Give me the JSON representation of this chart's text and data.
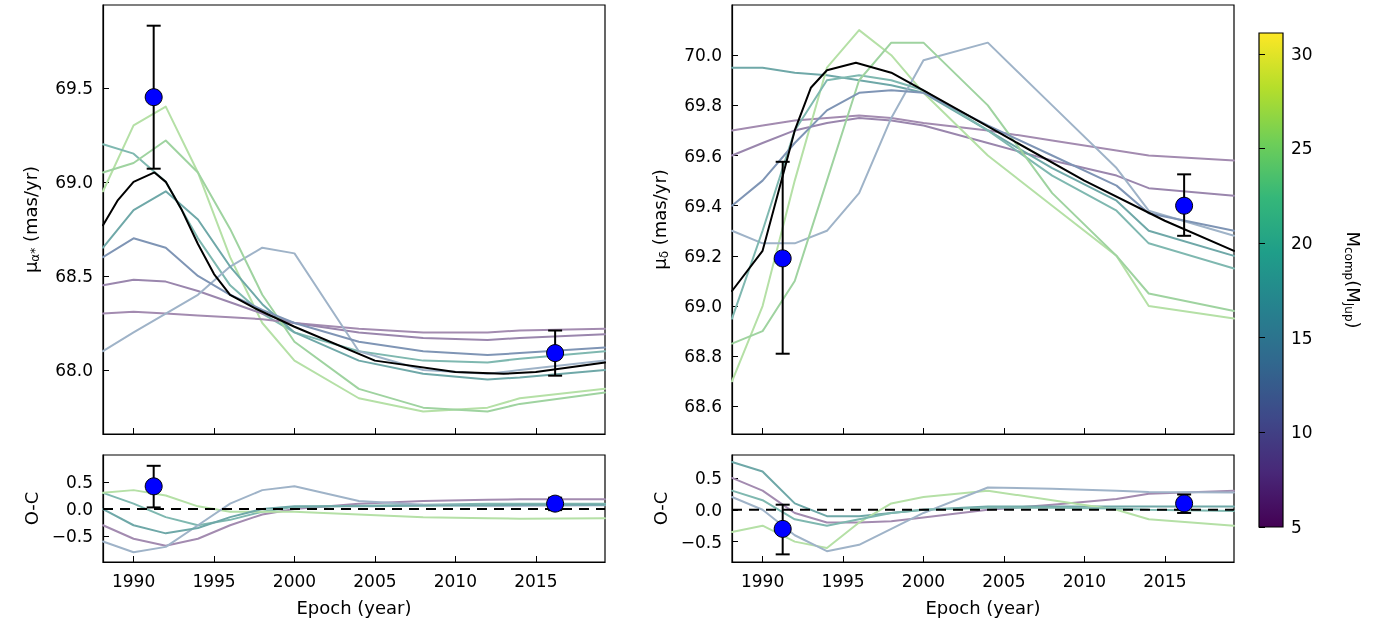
{
  "chart_data": [
    {
      "type": "line",
      "ylabel": "μ$_{α*}$ (mas/yr)",
      "xlim": [
        1988.1,
        2019.3
      ],
      "xticks": [
        1990,
        1995,
        2000,
        2005,
        2010,
        2015
      ],
      "ylim": [
        67.66,
        69.94
      ],
      "yticks": [
        {
          "value": 68,
          "label": "68.0"
        },
        68.5,
        {
          "value": 69,
          "label": "69.0"
        },
        69.5
      ],
      "tick_labels": "y",
      "x": [
        1988.1,
        1990,
        1992,
        1994,
        1996,
        1998,
        2000,
        2004,
        2008,
        2012,
        2014,
        2019.3
      ],
      "series": [
        {
          "color": "#b5e0a6",
          "values": [
            68.95,
            69.3,
            69.4,
            69.05,
            68.6,
            68.25,
            68.05,
            67.85,
            67.78,
            67.8,
            67.85,
            67.9
          ]
        },
        {
          "color": "#7fb8b0",
          "values": [
            69.2,
            69.15,
            69.0,
            68.7,
            68.45,
            68.3,
            68.2,
            68.1,
            68.05,
            68.04,
            68.06,
            68.1
          ]
        },
        {
          "color": "#a38bb0",
          "values": [
            68.3,
            68.31,
            68.3,
            68.29,
            68.28,
            68.27,
            68.25,
            68.22,
            68.2,
            68.2,
            68.21,
            68.22
          ]
        },
        {
          "color": "#9a86ad",
          "values": [
            68.45,
            68.48,
            68.47,
            68.42,
            68.36,
            68.3,
            68.25,
            68.2,
            68.17,
            68.16,
            68.17,
            68.19
          ]
        },
        {
          "color": "#9fb3c8",
          "values": [
            68.1,
            68.2,
            68.3,
            68.4,
            68.55,
            68.65,
            68.62,
            68.1,
            68.0,
            67.98,
            68.0,
            68.05
          ]
        },
        {
          "color": "#6fa8a8",
          "values": [
            68.65,
            68.85,
            68.95,
            68.8,
            68.55,
            68.35,
            68.2,
            68.05,
            67.98,
            67.95,
            67.96,
            68.0
          ]
        },
        {
          "color": "#9fd3a0",
          "values": [
            69.05,
            69.1,
            69.22,
            69.05,
            68.75,
            68.4,
            68.15,
            67.9,
            67.8,
            67.78,
            67.82,
            67.88
          ]
        },
        {
          "color": "#7f95b5",
          "values": [
            68.6,
            68.7,
            68.65,
            68.5,
            68.4,
            68.32,
            68.25,
            68.15,
            68.1,
            68.08,
            68.09,
            68.12
          ]
        },
        {
          "color": "#000000",
          "x": [
            1988.1,
            1989,
            1990,
            1991.3,
            1992,
            1993,
            1994,
            1995,
            1996,
            1997.5,
            2000,
            2005,
            2010,
            2013,
            2015,
            2019.3
          ],
          "values": [
            68.77,
            68.9,
            69.0,
            69.05,
            69.0,
            68.85,
            68.67,
            68.51,
            68.4,
            68.33,
            68.23,
            68.05,
            67.99,
            67.98,
            67.99,
            68.04
          ]
        },
        {
          "type": "scatter",
          "marker": "circle",
          "color": "#0000ff",
          "x": [
            1991.25,
            2016.2
          ],
          "values": [
            69.45,
            68.09
          ],
          "errors": [
            [
              69.07,
              69.83
            ],
            [
              67.97,
              68.21
            ]
          ]
        }
      ]
    },
    {
      "type": "line",
      "ylabel": "μ$_{δ}$ (mas/yr)",
      "xlim": [
        1988.1,
        2019.3
      ],
      "xticks": [
        1990,
        1995,
        2000,
        2005,
        2010,
        2015
      ],
      "ylim": [
        68.49,
        70.2
      ],
      "yticks": [
        68.6,
        68.8,
        {
          "value": 69,
          "label": "69.0"
        },
        69.2,
        69.4,
        69.6,
        69.8,
        {
          "value": 70,
          "label": "70.0"
        }
      ],
      "tick_labels": "y",
      "clim": [
        5,
        31.1
      ],
      "cticks": [
        5,
        10,
        15,
        20,
        25,
        30
      ],
      "clabel": "M$_{comp}$(M$_{Jup}$)",
      "x": [
        1988.1,
        1990,
        1992,
        1994,
        1996,
        1998,
        2000,
        2004,
        2008,
        2012,
        2014,
        2019.3
      ],
      "series": [
        {
          "color": "#a38bb0",
          "values": [
            69.7,
            69.72,
            69.74,
            69.75,
            69.76,
            69.75,
            69.73,
            69.7,
            69.66,
            69.62,
            69.6,
            69.58
          ]
        },
        {
          "color": "#9a86ad",
          "values": [
            69.6,
            69.65,
            69.7,
            69.73,
            69.75,
            69.74,
            69.72,
            69.65,
            69.58,
            69.52,
            69.47,
            69.44
          ]
        },
        {
          "color": "#6fa8a8",
          "values": [
            69.95,
            69.95,
            69.93,
            69.92,
            69.9,
            69.88,
            69.85,
            69.7,
            69.55,
            69.42,
            69.3,
            69.2
          ]
        },
        {
          "color": "#b5e0a6",
          "values": [
            68.7,
            69.0,
            69.5,
            69.95,
            70.1,
            70.0,
            69.85,
            69.6,
            69.4,
            69.2,
            69.0,
            68.95
          ]
        },
        {
          "color": "#9fb3c8",
          "values": [
            69.3,
            69.25,
            69.25,
            69.3,
            69.45,
            69.75,
            69.98,
            70.05,
            69.8,
            69.55,
            69.38,
            69.28
          ]
        },
        {
          "color": "#7fb8b0",
          "values": [
            68.95,
            69.3,
            69.7,
            69.9,
            69.92,
            69.9,
            69.86,
            69.7,
            69.52,
            69.38,
            69.25,
            69.15
          ]
        },
        {
          "color": "#9fd3a0",
          "values": [
            68.85,
            68.9,
            69.1,
            69.5,
            69.9,
            70.05,
            70.05,
            69.8,
            69.45,
            69.2,
            69.05,
            68.98
          ]
        },
        {
          "color": "#7f95b5",
          "values": [
            69.4,
            69.5,
            69.65,
            69.78,
            69.85,
            69.86,
            69.85,
            69.72,
            69.6,
            69.48,
            69.37,
            69.3
          ]
        },
        {
          "color": "#000000",
          "x": [
            1988.1,
            1990,
            1991.3,
            1992,
            1993,
            1994,
            1995.8,
            1998,
            2000,
            2005,
            2010,
            2015,
            2019.3
          ],
          "values": [
            69.06,
            69.22,
            69.53,
            69.7,
            69.87,
            69.94,
            69.97,
            69.93,
            69.86,
            69.68,
            69.5,
            69.34,
            69.22
          ]
        },
        {
          "type": "scatter",
          "marker": "circle",
          "color": "#0000ff",
          "x": [
            1991.25,
            2016.2
          ],
          "values": [
            69.19,
            69.4
          ],
          "errors": [
            [
              68.81,
              69.575
            ],
            [
              69.28,
              69.525
            ]
          ]
        }
      ]
    },
    {
      "type": "line",
      "xlabel": "Epoch (year)",
      "ylabel": "O-C",
      "xlim": [
        1988.1,
        2019.3
      ],
      "xticks": [
        1990,
        1995,
        2000,
        2005,
        2010,
        2015
      ],
      "ylim": [
        -0.98,
        1.0
      ],
      "yticks": [
        {
          "value": -0.5,
          "label": "−0.5"
        },
        {
          "value": 0,
          "label": "0.0"
        },
        0.5
      ],
      "ref_lines": [
        {
          "axis": "y",
          "value": 0,
          "color": "#000000",
          "line_style": "dashed"
        }
      ],
      "x": [
        1988.1,
        1990,
        1992,
        1994,
        1996,
        1998,
        2000,
        2004,
        2008,
        2012,
        2014,
        2019.3
      ],
      "series": [
        {
          "color": "#a38bb0",
          "values": [
            -0.3,
            -0.55,
            -0.68,
            -0.55,
            -0.3,
            -0.1,
            0.0,
            0.1,
            0.15,
            0.17,
            0.18,
            0.18
          ]
        },
        {
          "color": "#7fb8b0",
          "values": [
            0.3,
            0.1,
            -0.15,
            -0.3,
            -0.2,
            -0.05,
            0.04,
            0.06,
            0.08,
            0.1,
            0.1,
            0.1
          ]
        },
        {
          "color": "#b5e0a6",
          "values": [
            0.3,
            0.35,
            0.25,
            0.05,
            -0.05,
            -0.05,
            -0.05,
            -0.1,
            -0.15,
            -0.17,
            -0.18,
            -0.17
          ]
        },
        {
          "color": "#9fb3c8",
          "values": [
            -0.6,
            -0.8,
            -0.7,
            -0.3,
            0.1,
            0.35,
            0.42,
            0.15,
            0.08,
            0.06,
            0.06,
            0.07
          ]
        },
        {
          "color": "#6fa8a8",
          "values": [
            0.0,
            -0.3,
            -0.45,
            -0.35,
            -0.15,
            0.0,
            0.05,
            0.05,
            0.06,
            0.07,
            0.08,
            0.08
          ]
        },
        {
          "type": "scatter",
          "marker": "circle",
          "color": "#0000ff",
          "x": [
            1991.25,
            2016.2
          ],
          "values": [
            0.42,
            0.1
          ],
          "errors": [
            [
              0.03,
              0.8
            ],
            [
              -0.02,
              0.21
            ]
          ]
        }
      ]
    },
    {
      "type": "line",
      "xlabel": "Epoch (year)",
      "ylabel": "O-C",
      "xlim": [
        1988.1,
        2019.3
      ],
      "xticks": [
        1990,
        1995,
        2000,
        2005,
        2010,
        2015
      ],
      "ylim": [
        -0.82,
        0.86
      ],
      "yticks": [
        {
          "value": -0.5,
          "label": "−0.5"
        },
        {
          "value": 0,
          "label": "0.0"
        },
        0.5
      ],
      "ref_lines": [
        {
          "axis": "y",
          "value": 0,
          "color": "#000000",
          "line_style": "dashed"
        }
      ],
      "x": [
        1988.1,
        1990,
        1992,
        1994,
        1996,
        1998,
        2000,
        2004,
        2008,
        2012,
        2014,
        2019.3
      ],
      "series": [
        {
          "color": "#a38bb0",
          "values": [
            0.5,
            0.3,
            -0.05,
            -0.2,
            -0.2,
            -0.18,
            -0.12,
            0.0,
            0.08,
            0.17,
            0.25,
            0.3
          ]
        },
        {
          "color": "#6fa8a8",
          "values": [
            0.75,
            0.6,
            0.1,
            -0.1,
            -0.1,
            -0.05,
            0.0,
            0.05,
            0.05,
            0.05,
            0.05,
            0.05
          ]
        },
        {
          "color": "#b5e0a6",
          "values": [
            -0.35,
            -0.25,
            -0.5,
            -0.6,
            -0.2,
            0.1,
            0.2,
            0.3,
            0.15,
            0.0,
            -0.15,
            -0.25
          ]
        },
        {
          "color": "#9fb3c8",
          "values": [
            0.2,
            0.0,
            -0.4,
            -0.65,
            -0.55,
            -0.3,
            -0.05,
            0.35,
            0.33,
            0.3,
            0.28,
            0.27
          ]
        },
        {
          "color": "#7fb8b0",
          "values": [
            0.3,
            0.15,
            -0.15,
            -0.25,
            -0.15,
            -0.05,
            0.0,
            0.03,
            0.03,
            0.02,
            0.0,
            -0.02
          ]
        },
        {
          "type": "scatter",
          "marker": "circle",
          "color": "#0000ff",
          "x": [
            1991.25,
            2016.2
          ],
          "values": [
            -0.3,
            0.1
          ],
          "errors": [
            [
              -0.7,
              0.08
            ],
            [
              -0.05,
              0.24
            ]
          ]
        }
      ]
    }
  ]
}
